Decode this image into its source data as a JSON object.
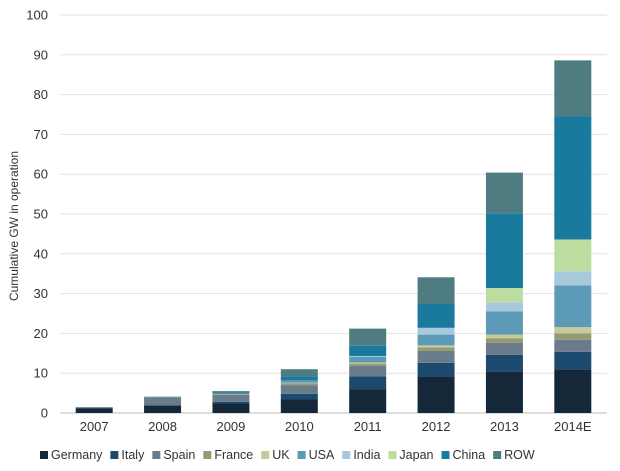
{
  "chart_data": {
    "type": "bar",
    "stacked": true,
    "title": "",
    "xlabel": "",
    "ylabel": "Cumulative GW in operation",
    "ylim": [
      0,
      100
    ],
    "yticks": [
      0,
      10,
      20,
      30,
      40,
      50,
      60,
      70,
      80,
      90,
      100
    ],
    "grid": true,
    "legend_position": "bottom",
    "categories": [
      "2007",
      "2008",
      "2009",
      "2010",
      "2011",
      "2012",
      "2013",
      "2014E"
    ],
    "series": [
      {
        "name": "Germany",
        "color": "#14283a",
        "values": [
          1.2,
          1.8,
          2.4,
          3.4,
          6.0,
          9.2,
          10.4,
          11.0
        ]
      },
      {
        "name": "Italy",
        "color": "#1b4a6e",
        "values": [
          0.1,
          0.2,
          0.4,
          1.4,
          3.2,
          3.4,
          4.2,
          4.4
        ]
      },
      {
        "name": "Spain",
        "color": "#6a7c8c",
        "values": [
          0.2,
          1.8,
          1.8,
          2.2,
          2.6,
          3.0,
          3.0,
          3.0
        ]
      },
      {
        "name": "France",
        "color": "#949a72",
        "values": [
          0.0,
          0.0,
          0.1,
          0.5,
          0.6,
          0.9,
          1.2,
          1.6
        ]
      },
      {
        "name": "UK",
        "color": "#c6c99a",
        "values": [
          0.0,
          0.0,
          0.0,
          0.1,
          0.3,
          0.5,
          0.9,
          1.6
        ]
      },
      {
        "name": "USA",
        "color": "#5d9ab8",
        "values": [
          0.0,
          0.1,
          0.2,
          0.6,
          1.4,
          2.7,
          5.8,
          10.5
        ]
      },
      {
        "name": "India",
        "color": "#a6cadb",
        "values": [
          0.0,
          0.0,
          0.0,
          0.0,
          0.2,
          1.7,
          2.3,
          3.5
        ]
      },
      {
        "name": "Japan",
        "color": "#bcdca0",
        "values": [
          0.0,
          0.0,
          0.0,
          0.0,
          0.0,
          0.0,
          3.6,
          8.0
        ]
      },
      {
        "name": "China",
        "color": "#1a7a9e",
        "values": [
          0.0,
          0.0,
          0.1,
          1.0,
          2.6,
          6.1,
          18.8,
          31.0
        ]
      },
      {
        "name": "ROW",
        "color": "#4f7c80",
        "values": [
          0.0,
          0.2,
          0.5,
          1.8,
          4.3,
          6.6,
          10.2,
          14.0
        ]
      }
    ]
  }
}
